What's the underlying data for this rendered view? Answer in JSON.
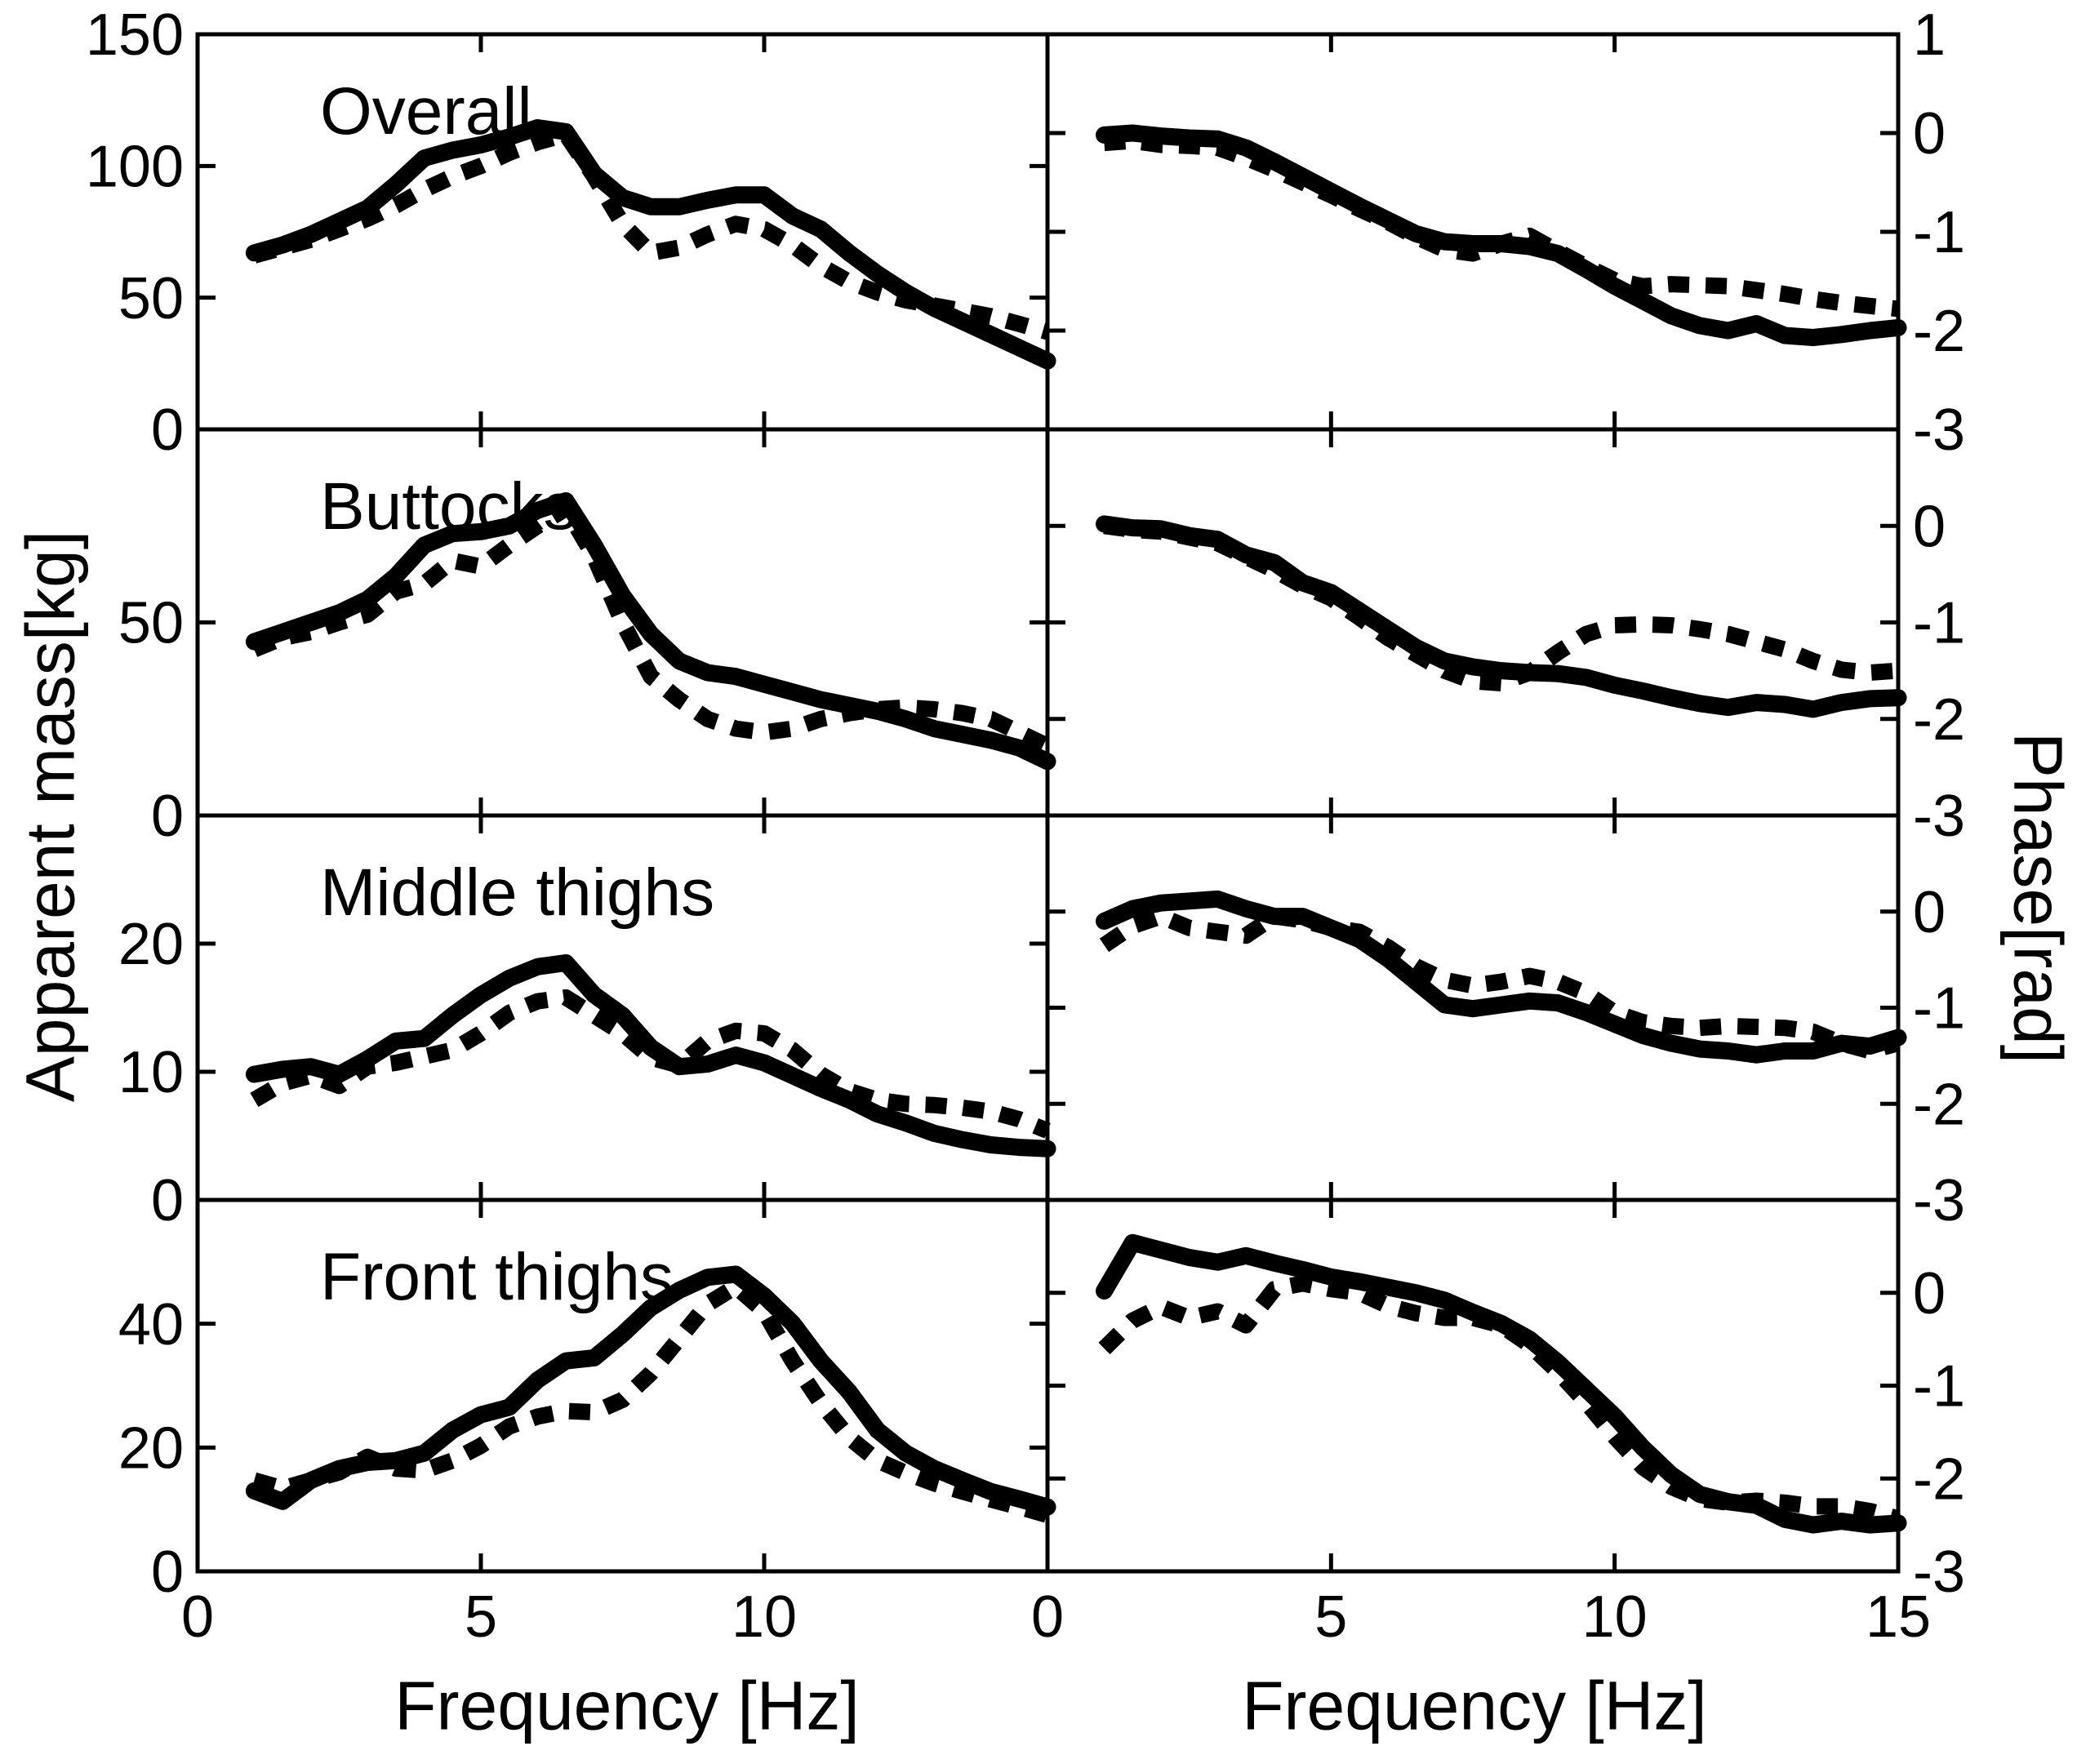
{
  "figure_labels": {
    "y_left": "Apparent mass[kg]",
    "y_right": "Phase[rad]",
    "x_left": "Frequency [Hz]",
    "x_right": "Frequency [Hz]"
  },
  "style": {
    "line_color": "#000000",
    "background": "#ffffff",
    "solid_width": 21,
    "dotted_width": 20,
    "dotted_dash": [
      26,
      20
    ],
    "frame_width": 5,
    "tick_len": 22
  },
  "x_axis": {
    "left_tick_labels": [
      {
        "v": 0,
        "label": "0"
      },
      {
        "v": 5,
        "label": "5"
      },
      {
        "v": 10,
        "label": "10"
      }
    ],
    "right_tick_labels": [
      {
        "v": 0,
        "label": "0"
      },
      {
        "v": 5,
        "label": "5"
      },
      {
        "v": 10,
        "label": "10"
      },
      {
        "v": 15,
        "label": "15"
      }
    ]
  },
  "chart_data": [
    {
      "panel": "overall-mass",
      "row": 0,
      "col": 0,
      "title": "Overall",
      "type": "line",
      "xlabel": "Frequency [Hz]",
      "ylabel": "Apparent mass[kg]",
      "xlim": [
        0,
        15
      ],
      "ylim": [
        0,
        150
      ],
      "yticks_labeled": [
        0,
        50,
        100,
        150
      ],
      "xticks": [
        5,
        10
      ],
      "x": [
        1,
        1.5,
        2,
        2.5,
        3,
        3.5,
        4,
        4.5,
        5,
        5.5,
        6,
        6.5,
        7,
        7.5,
        8,
        8.5,
        9,
        9.5,
        10,
        10.5,
        11,
        11.5,
        12,
        12.5,
        13,
        13.5,
        14,
        14.5,
        15
      ],
      "series": [
        {
          "name": "condition-1",
          "style": "solid",
          "values": [
            67,
            70,
            74,
            79,
            84,
            93,
            103,
            106,
            108,
            111,
            114.5,
            113,
            97,
            88,
            84.5,
            84.5,
            87,
            89,
            89,
            81,
            76,
            67,
            59,
            52,
            46,
            41,
            36,
            31,
            26
          ]
        },
        {
          "name": "condition-2",
          "style": "dotted",
          "values": [
            66,
            69,
            72,
            76,
            80,
            85,
            91,
            96,
            100,
            105,
            109,
            112,
            96,
            78,
            67,
            69,
            74,
            78,
            76,
            70,
            62,
            56,
            52,
            49,
            47,
            45,
            43,
            40,
            37
          ]
        }
      ]
    },
    {
      "panel": "overall-phase",
      "row": 0,
      "col": 1,
      "title": "",
      "type": "line",
      "xlabel": "Frequency [Hz]",
      "ylabel": "Phase[rad]",
      "xlim": [
        0,
        15
      ],
      "ylim": [
        -3,
        1
      ],
      "yticks_labeled": [
        1,
        0,
        -1,
        -2,
        -3
      ],
      "xticks": [
        5,
        10
      ],
      "x": [
        1,
        1.5,
        2,
        2.5,
        3,
        3.5,
        4,
        4.5,
        5,
        5.5,
        6,
        6.5,
        7,
        7.5,
        8,
        8.5,
        9,
        9.5,
        10,
        10.5,
        11,
        11.5,
        12,
        12.5,
        13,
        13.5,
        14,
        14.5,
        15
      ],
      "series": [
        {
          "name": "condition-1",
          "style": "solid",
          "values": [
            -0.02,
            0,
            -0.03,
            -0.05,
            -0.06,
            -0.15,
            -0.29,
            -0.44,
            -0.59,
            -0.74,
            -0.88,
            -1.02,
            -1.1,
            -1.12,
            -1.12,
            -1.15,
            -1.22,
            -1.38,
            -1.55,
            -1.7,
            -1.85,
            -1.95,
            -2,
            -1.93,
            -2.05,
            -2.07,
            -2.04,
            -2,
            -1.97
          ]
        },
        {
          "name": "condition-2",
          "style": "dotted",
          "values": [
            -0.1,
            -0.08,
            -0.12,
            -0.13,
            -0.15,
            -0.25,
            -0.37,
            -0.5,
            -0.63,
            -0.77,
            -0.9,
            -1.05,
            -1.18,
            -1.22,
            -1.12,
            -1.04,
            -1.2,
            -1.35,
            -1.49,
            -1.55,
            -1.53,
            -1.54,
            -1.55,
            -1.59,
            -1.63,
            -1.68,
            -1.72,
            -1.75,
            -1.78
          ]
        }
      ]
    },
    {
      "panel": "buttocks-mass",
      "row": 1,
      "col": 0,
      "title": "Buttocks",
      "type": "line",
      "xlabel": "Frequency [Hz]",
      "ylabel": "Apparent mass[kg]",
      "xlim": [
        0,
        15
      ],
      "ylim": [
        0,
        100
      ],
      "yticks_labeled": [
        0,
        50
      ],
      "xticks": [
        5,
        10
      ],
      "x": [
        1,
        1.5,
        2,
        2.5,
        3,
        3.5,
        4,
        4.5,
        5,
        5.5,
        6,
        6.5,
        7,
        7.5,
        8,
        8.5,
        9,
        9.5,
        10,
        10.5,
        11,
        11.5,
        12,
        12.5,
        13,
        13.5,
        14,
        14.5,
        15
      ],
      "series": [
        {
          "name": "condition-1",
          "style": "solid",
          "values": [
            45,
            47.5,
            50,
            52.5,
            56,
            62,
            70,
            73,
            73.5,
            75,
            79,
            81.5,
            70,
            57,
            47,
            40,
            37,
            36,
            34,
            32,
            30,
            28.5,
            27,
            25,
            22.5,
            21,
            19.5,
            17.5,
            14
          ]
        },
        {
          "name": "condition-2",
          "style": "dotted",
          "values": [
            43,
            46,
            47.5,
            50,
            52,
            58,
            60,
            66,
            64.5,
            70,
            75,
            79.5,
            67,
            50,
            36,
            30,
            25,
            22.5,
            21.5,
            22.5,
            25,
            26.5,
            27.5,
            28,
            27.5,
            26.5,
            25,
            21.5,
            18
          ]
        }
      ]
    },
    {
      "panel": "buttocks-phase",
      "row": 1,
      "col": 1,
      "title": "",
      "type": "line",
      "xlabel": "Frequency [Hz]",
      "ylabel": "Phase[rad]",
      "xlim": [
        0,
        15
      ],
      "ylim": [
        -3,
        1
      ],
      "yticks_labeled": [
        0,
        -1,
        -2,
        -3
      ],
      "xticks": [
        5,
        10
      ],
      "x": [
        1,
        1.5,
        2,
        2.5,
        3,
        3.5,
        4,
        4.5,
        5,
        5.5,
        6,
        6.5,
        7,
        7.5,
        8,
        8.5,
        9,
        9.5,
        10,
        10.5,
        11,
        11.5,
        12,
        12.5,
        13,
        13.5,
        14,
        14.5,
        15
      ],
      "series": [
        {
          "name": "condition-1",
          "style": "solid",
          "values": [
            0.02,
            -0.02,
            -0.03,
            -0.1,
            -0.14,
            -0.3,
            -0.38,
            -0.59,
            -0.69,
            -0.88,
            -1.07,
            -1.26,
            -1.4,
            -1.46,
            -1.5,
            -1.52,
            -1.53,
            -1.57,
            -1.65,
            -1.71,
            -1.78,
            -1.84,
            -1.88,
            -1.83,
            -1.85,
            -1.9,
            -1.83,
            -1.79,
            -1.78
          ]
        },
        {
          "name": "condition-2",
          "style": "dotted",
          "values": [
            0,
            -0.04,
            -0.06,
            -0.12,
            -0.18,
            -0.32,
            -0.46,
            -0.62,
            -0.75,
            -0.95,
            -1.16,
            -1.33,
            -1.5,
            -1.61,
            -1.63,
            -1.52,
            -1.31,
            -1.12,
            -1.03,
            -1.02,
            -1.03,
            -1.07,
            -1.12,
            -1.2,
            -1.28,
            -1.4,
            -1.49,
            -1.52,
            -1.5
          ]
        }
      ]
    },
    {
      "panel": "middle-thighs-mass",
      "row": 2,
      "col": 0,
      "title": "Middle thighs",
      "type": "line",
      "xlabel": "Frequency [Hz]",
      "ylabel": "Apparent mass[kg]",
      "xlim": [
        0,
        15
      ],
      "ylim": [
        0,
        30
      ],
      "yticks_labeled": [
        0,
        10,
        20
      ],
      "xticks": [
        5,
        10
      ],
      "x": [
        1,
        1.5,
        2,
        2.5,
        3,
        3.5,
        4,
        4.5,
        5,
        5.5,
        6,
        6.5,
        7,
        7.5,
        8,
        8.5,
        9,
        9.5,
        10,
        10.5,
        11,
        11.5,
        12,
        12.5,
        13,
        13.5,
        14,
        14.5,
        15
      ],
      "series": [
        {
          "name": "condition-1",
          "style": "solid",
          "values": [
            9.8,
            10.2,
            10.4,
            9.8,
            11,
            12.4,
            12.6,
            14.4,
            16,
            17.3,
            18.2,
            18.5,
            16,
            14.4,
            11.9,
            10.4,
            10.6,
            11.3,
            10.7,
            9.7,
            8.7,
            7.8,
            6.7,
            6,
            5.2,
            4.7,
            4.3,
            4.1,
            4
          ]
        },
        {
          "name": "condition-2",
          "style": "dotted",
          "values": [
            7.8,
            9.1,
            9.7,
            8.9,
            10.4,
            10.7,
            11.2,
            11.7,
            13,
            14.6,
            15.5,
            15.8,
            14.4,
            13,
            11.1,
            10.5,
            12.4,
            13.2,
            13,
            11.7,
            9.8,
            8.5,
            7.8,
            7.5,
            7.4,
            7.2,
            6.9,
            6.3,
            5.4
          ]
        }
      ]
    },
    {
      "panel": "middle-thighs-phase",
      "row": 2,
      "col": 1,
      "title": "",
      "type": "line",
      "xlabel": "Frequency [Hz]",
      "ylabel": "Phase[rad]",
      "xlim": [
        0,
        15
      ],
      "ylim": [
        -3,
        1
      ],
      "yticks_labeled": [
        0,
        -1,
        -2,
        -3
      ],
      "xticks": [
        5,
        10
      ],
      "x": [
        1,
        1.5,
        2,
        2.5,
        3,
        3.5,
        4,
        4.5,
        5,
        5.5,
        6,
        6.5,
        7,
        7.5,
        8,
        8.5,
        9,
        9.5,
        10,
        10.5,
        11,
        11.5,
        12,
        12.5,
        13,
        13.5,
        14,
        14.5,
        15
      ],
      "series": [
        {
          "name": "condition-1",
          "style": "solid",
          "values": [
            -0.1,
            0.03,
            0.09,
            0.11,
            0.13,
            0.03,
            -0.05,
            -0.05,
            -0.17,
            -0.29,
            -0.49,
            -0.73,
            -0.97,
            -1.01,
            -0.97,
            -0.93,
            -0.95,
            -1.05,
            -1.17,
            -1.29,
            -1.37,
            -1.43,
            -1.45,
            -1.49,
            -1.45,
            -1.45,
            -1.37,
            -1.4,
            -1.31
          ]
        },
        {
          "name": "condition-2",
          "style": "dotted",
          "values": [
            -0.35,
            -0.15,
            -0.05,
            -0.17,
            -0.21,
            -0.25,
            -0.05,
            -0.09,
            -0.17,
            -0.21,
            -0.37,
            -0.57,
            -0.71,
            -0.77,
            -0.73,
            -0.67,
            -0.73,
            -0.85,
            -1.05,
            -1.15,
            -1.19,
            -1.21,
            -1.19,
            -1.2,
            -1.21,
            -1.25,
            -1.37,
            -1.45,
            -1.37
          ]
        }
      ]
    },
    {
      "panel": "front-thighs-mass",
      "row": 3,
      "col": 0,
      "title": "Front thighs",
      "type": "line",
      "xlabel": "Frequency [Hz]",
      "ylabel": "Apparent mass[kg]",
      "xlim": [
        0,
        15
      ],
      "ylim": [
        0,
        60
      ],
      "yticks_labeled": [
        0,
        20,
        40
      ],
      "xticks": [
        5,
        10
      ],
      "x": [
        1,
        1.5,
        2,
        2.5,
        3,
        3.5,
        4,
        4.5,
        5,
        5.5,
        6,
        6.5,
        7,
        7.5,
        8,
        8.5,
        9,
        9.5,
        10,
        10.5,
        11,
        11.5,
        12,
        12.5,
        13,
        13.5,
        14,
        14.5,
        15
      ],
      "series": [
        {
          "name": "condition-1",
          "style": "solid",
          "values": [
            13,
            11.3,
            14.7,
            16.6,
            17.6,
            17.9,
            19.1,
            22.8,
            25.3,
            26.5,
            30.9,
            34,
            34.5,
            38.3,
            42.6,
            45.4,
            47.5,
            48,
            44.5,
            40.1,
            34,
            29,
            22.8,
            19.1,
            16.6,
            14.7,
            12.9,
            11.7,
            10.4
          ]
        },
        {
          "name": "condition-2",
          "style": "dotted",
          "values": [
            14.7,
            13.4,
            14.7,
            16,
            18.5,
            16.6,
            16.3,
            17.9,
            20.3,
            23.4,
            25,
            25.9,
            25.7,
            27.7,
            32,
            37.6,
            43.2,
            46,
            42,
            34,
            27.2,
            21.6,
            17.9,
            15.9,
            14.2,
            12.9,
            11.6,
            10.4,
            9.1
          ]
        }
      ]
    },
    {
      "panel": "front-thighs-phase",
      "row": 3,
      "col": 1,
      "title": "",
      "type": "line",
      "xlabel": "Frequency [Hz]",
      "ylabel": "Phase[rad]",
      "xlim": [
        0,
        15
      ],
      "ylim": [
        -3,
        1
      ],
      "yticks_labeled": [
        0,
        -1,
        -2,
        -3
      ],
      "xticks": [
        5,
        10
      ],
      "x": [
        1,
        1.5,
        2,
        2.5,
        3,
        3.5,
        4,
        4.5,
        5,
        5.5,
        6,
        6.5,
        7,
        7.5,
        8,
        8.5,
        9,
        9.5,
        10,
        10.5,
        11,
        11.5,
        12,
        12.5,
        13,
        13.5,
        14,
        14.5,
        15
      ],
      "series": [
        {
          "name": "condition-1",
          "style": "solid",
          "values": [
            0.02,
            0.54,
            0.46,
            0.38,
            0.33,
            0.4,
            0.32,
            0.25,
            0.17,
            0.12,
            0.06,
            0,
            -0.08,
            -0.21,
            -0.33,
            -0.5,
            -0.75,
            -1.04,
            -1.33,
            -1.67,
            -1.96,
            -2.17,
            -2.25,
            -2.29,
            -2.44,
            -2.5,
            -2.46,
            -2.5,
            -2.48
          ]
        },
        {
          "name": "condition-2",
          "style": "dotted",
          "values": [
            -0.6,
            -0.3,
            -0.15,
            -0.27,
            -0.2,
            -0.35,
            0.04,
            0.1,
            0.04,
            0,
            -0.14,
            -0.22,
            -0.27,
            -0.27,
            -0.35,
            -0.56,
            -0.85,
            -1.18,
            -1.55,
            -1.88,
            -2.09,
            -2.22,
            -2.26,
            -2.24,
            -2.26,
            -2.3,
            -2.3,
            -2.35,
            -2.43
          ]
        }
      ]
    }
  ]
}
